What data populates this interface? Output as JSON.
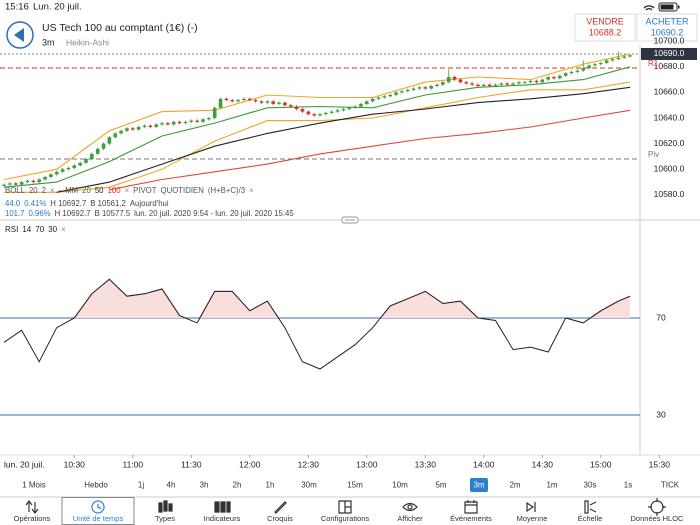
{
  "status_bar": {
    "time": "15:16",
    "date": "Lun. 20 juil."
  },
  "header": {
    "title": "US Tech 100 au comptant (1€) (-)",
    "timeframe": "3m",
    "chart_type": "Heikin-Ashi"
  },
  "quotes": {
    "sell": {
      "label": "VENDRE",
      "price": "10688.2"
    },
    "buy": {
      "label": "ACHETER",
      "price": "10690.2"
    }
  },
  "indicator_legend": {
    "row1": [
      {
        "text": "BOLL",
        "color": "#555"
      },
      {
        "text": "20",
        "color": "#555"
      },
      {
        "text": "2",
        "color": "#555"
      },
      {
        "text": "×",
        "color": "#888"
      },
      {
        "text": "-",
        "color": "#555"
      },
      {
        "text": "MM",
        "color": "#555"
      },
      {
        "text": "20",
        "color": "#2e8b2e"
      },
      {
        "text": "50",
        "color": "#222"
      },
      {
        "text": "100",
        "color": "#d9342b"
      },
      {
        "text": "×",
        "color": "#888"
      },
      {
        "text": "PIVOT",
        "color": "#555"
      },
      {
        "text": "QUOTIDIEN",
        "color": "#555"
      },
      {
        "text": "(H+B+C)/3",
        "color": "#555"
      },
      {
        "text": "×",
        "color": "#888"
      }
    ],
    "row2": [
      {
        "text": "44.0",
        "color": "#2a78c8"
      },
      {
        "text": "0.41%",
        "color": "#2a78c8"
      },
      {
        "text": "H 10692.7",
        "color": "#444"
      },
      {
        "text": "B 10561.2",
        "color": "#444"
      },
      {
        "text": "Aujourd'hui",
        "color": "#444"
      }
    ],
    "row3": [
      {
        "text": "101.7",
        "color": "#2a78c8"
      },
      {
        "text": "0.96%",
        "color": "#2a78c8"
      },
      {
        "text": "H 10692.7",
        "color": "#444"
      },
      {
        "text": "B 10577.5",
        "color": "#444"
      },
      {
        "text": "lun. 20 juil. 2020 9:54 - lun. 20 juil. 2020 15:45",
        "color": "#444"
      }
    ]
  },
  "chart_data": [
    {
      "type": "candlestick",
      "x": [
        0,
        1,
        2,
        3,
        4,
        5,
        6,
        7,
        8,
        9,
        10,
        11,
        12,
        13,
        14,
        15,
        16,
        17,
        18,
        19,
        20,
        21,
        22,
        23,
        24,
        25,
        26,
        27,
        28,
        29,
        30,
        31,
        32,
        33,
        34,
        35,
        36,
        37,
        38,
        39,
        40,
        41,
        42,
        43,
        44,
        45,
        46,
        47,
        48,
        49,
        50,
        51,
        52,
        53,
        54,
        55,
        56,
        57,
        58,
        59,
        60,
        61,
        62,
        63,
        64,
        65,
        66,
        67,
        68,
        69,
        70,
        71,
        72,
        73,
        74,
        75,
        76,
        77,
        78,
        79,
        80,
        81,
        82,
        83,
        84,
        85,
        86,
        87,
        88,
        89,
        90,
        91,
        92,
        93,
        94,
        95,
        96,
        97,
        98,
        99,
        100,
        101,
        102,
        103,
        104,
        105,
        106,
        107
      ],
      "open": [
        10587,
        10588,
        10589,
        10588,
        10590,
        10591,
        10590,
        10592,
        10594,
        10596,
        10598,
        10600,
        10601,
        10603,
        10605,
        10608,
        10612,
        10616,
        10620,
        10625,
        10628,
        10630,
        10632,
        10631,
        10633,
        10634,
        10633,
        10635,
        10636,
        10635,
        10637,
        10636,
        10637,
        10638,
        10637,
        10639,
        10640,
        10648,
        10655,
        10654,
        10653,
        10654,
        10655,
        10654,
        10653,
        10652,
        10653,
        10651,
        10652,
        10650,
        10649,
        10647,
        10645,
        10643,
        10642,
        10643,
        10644,
        10645,
        10646,
        10647,
        10648,
        10649,
        10651,
        10653,
        10655,
        10656,
        10657,
        10658,
        10660,
        10661,
        10662,
        10663,
        10664,
        10663,
        10665,
        10666,
        10668,
        10672,
        10670,
        10668,
        10667,
        10666,
        10665,
        10666,
        10665,
        10666,
        10667,
        10666,
        10667,
        10668,
        10668,
        10669,
        10668,
        10670,
        10672,
        10671,
        10673,
        10675,
        10676,
        10677,
        10679,
        10681,
        10682,
        10683,
        10685,
        10686,
        10687,
        10688
      ],
      "high": [
        10589,
        10590,
        10590,
        10591,
        10592,
        10592,
        10593,
        10595,
        10597,
        10599,
        10601,
        10602,
        10604,
        10606,
        10609,
        10613,
        10617,
        10621,
        10626,
        10629,
        10631,
        10633,
        10633,
        10634,
        10635,
        10635,
        10636,
        10637,
        10637,
        10638,
        10638,
        10638,
        10639,
        10639,
        10640,
        10641,
        10649,
        10656,
        10656,
        10655,
        10655,
        10656,
        10656,
        10655,
        10654,
        10654,
        10654,
        10653,
        10653,
        10651,
        10650,
        10648,
        10646,
        10644,
        10644,
        10645,
        10646,
        10647,
        10648,
        10649,
        10650,
        10652,
        10654,
        10656,
        10657,
        10658,
        10659,
        10661,
        10662,
        10663,
        10664,
        10665,
        10665,
        10666,
        10667,
        10669,
        10678,
        10673,
        10671,
        10669,
        10668,
        10667,
        10667,
        10667,
        10667,
        10668,
        10668,
        10668,
        10669,
        10669,
        10670,
        10670,
        10671,
        10673,
        10673,
        10674,
        10676,
        10677,
        10678,
        10685,
        10682,
        10683,
        10684,
        10686,
        10687,
        10692,
        10689,
        10690
      ],
      "low": [
        10586,
        10587,
        10587,
        10587,
        10589,
        10589,
        10589,
        10591,
        10593,
        10595,
        10597,
        10599,
        10600,
        10602,
        10604,
        10607,
        10611,
        10615,
        10619,
        10624,
        10627,
        10629,
        10630,
        10630,
        10632,
        10632,
        10632,
        10634,
        10634,
        10634,
        10635,
        10635,
        10636,
        10636,
        10636,
        10638,
        10639,
        10647,
        10653,
        10652,
        10652,
        10653,
        10653,
        10652,
        10651,
        10651,
        10650,
        10650,
        10649,
        10648,
        10646,
        10644,
        10642,
        10641,
        10641,
        10642,
        10643,
        10644,
        10645,
        10646,
        10647,
        10648,
        10650,
        10652,
        10654,
        10655,
        10656,
        10657,
        10659,
        10660,
        10661,
        10662,
        10662,
        10662,
        10664,
        10665,
        10667,
        10669,
        10667,
        10666,
        10665,
        10664,
        10664,
        10664,
        10664,
        10665,
        10665,
        10665,
        10666,
        10667,
        10667,
        10667,
        10667,
        10669,
        10670,
        10670,
        10672,
        10674,
        10675,
        10676,
        10678,
        10680,
        10681,
        10682,
        10684,
        10685,
        10686,
        10687
      ],
      "close": [
        10588,
        10589,
        10588,
        10590,
        10591,
        10590,
        10592,
        10594,
        10596,
        10598,
        10600,
        10601,
        10603,
        10605,
        10608,
        10612,
        10616,
        10620,
        10625,
        10628,
        10630,
        10632,
        10631,
        10633,
        10634,
        10633,
        10635,
        10636,
        10635,
        10637,
        10636,
        10637,
        10638,
        10637,
        10639,
        10640,
        10648,
        10655,
        10654,
        10653,
        10654,
        10655,
        10654,
        10653,
        10652,
        10653,
        10651,
        10652,
        10650,
        10649,
        10647,
        10645,
        10643,
        10642,
        10643,
        10644,
        10645,
        10646,
        10647,
        10648,
        10649,
        10651,
        10653,
        10655,
        10656,
        10657,
        10658,
        10660,
        10661,
        10662,
        10663,
        10664,
        10663,
        10665,
        10666,
        10668,
        10672,
        10670,
        10668,
        10667,
        10666,
        10665,
        10666,
        10665,
        10666,
        10667,
        10666,
        10667,
        10668,
        10668,
        10669,
        10668,
        10670,
        10672,
        10671,
        10673,
        10675,
        10676,
        10677,
        10679,
        10681,
        10682,
        10683,
        10685,
        10686,
        10687,
        10688,
        10689
      ],
      "up_color": "#3f9f3a",
      "down_color": "#d5322b",
      "overlays": [
        {
          "color": "#f0a52a",
          "x": [
            0,
            9,
            18,
            27,
            36,
            45,
            54,
            63,
            72,
            81,
            90,
            99,
            107
          ],
          "values": [
            10592,
            10600,
            10630,
            10645,
            10646,
            10658,
            10656,
            10656,
            10668,
            10672,
            10670,
            10682,
            10690
          ]
        },
        {
          "color": "#3b9a35",
          "x": [
            0,
            9,
            18,
            27,
            36,
            45,
            54,
            63,
            72,
            81,
            90,
            99,
            107
          ],
          "values": [
            10586,
            10590,
            10606,
            10626,
            10636,
            10648,
            10649,
            10648,
            10658,
            10664,
            10666,
            10670,
            10680
          ]
        },
        {
          "color": "#f0a52a",
          "x": [
            0,
            9,
            18,
            27,
            36,
            45,
            54,
            63,
            72,
            81,
            90,
            99,
            107
          ],
          "values": [
            10582,
            10582,
            10586,
            10600,
            10622,
            10638,
            10638,
            10640,
            10648,
            10656,
            10662,
            10662,
            10668
          ]
        },
        {
          "color": "#222222",
          "x": [
            9,
            18,
            27,
            36,
            45,
            54,
            63,
            72,
            81,
            90,
            99,
            107
          ],
          "values": [
            10582,
            10590,
            10604,
            10618,
            10628,
            10636,
            10643,
            10647,
            10652,
            10655,
            10659,
            10664
          ]
        },
        {
          "color": "#e0463c",
          "x": [
            18,
            27,
            36,
            45,
            54,
            63,
            72,
            81,
            90,
            99,
            107
          ],
          "values": [
            10584,
            10592,
            10598,
            10604,
            10612,
            10618,
            10624,
            10628,
            10633,
            10640,
            10646
          ]
        }
      ],
      "reference_lines": [
        {
          "label": "R1",
          "value": 10679,
          "color": "#d5322b"
        },
        {
          "label": "Piv",
          "value": 10608,
          "color": "#777"
        }
      ],
      "last_price": {
        "value": 10690,
        "label": "10690.0"
      },
      "xlim": [
        -0.7,
        108.7
      ],
      "xticks": [
        {
          "value": 12,
          "label": "10:30"
        },
        {
          "value": 22,
          "label": "11:00"
        },
        {
          "value": 32,
          "label": "11:30"
        },
        {
          "value": 42,
          "label": "12:00"
        },
        {
          "value": 52,
          "label": "12:30"
        },
        {
          "value": 62,
          "label": "13:00"
        },
        {
          "value": 72,
          "label": "13:30"
        },
        {
          "value": 82,
          "label": "14:00"
        },
        {
          "value": 92,
          "label": "14:30"
        },
        {
          "value": 102,
          "label": "15:00"
        },
        {
          "value": 112,
          "label": "15:30"
        }
      ],
      "x_date_label": "lun. 20 juil.",
      "ylim": [
        10576,
        10697
      ],
      "yticks": [
        {
          "value": 10580,
          "label": "10580.0"
        },
        {
          "value": 10600,
          "label": "10600.0"
        },
        {
          "value": 10620,
          "label": "10620.0"
        },
        {
          "value": 10640,
          "label": "10640.0"
        },
        {
          "value": 10660,
          "label": "10660.0"
        },
        {
          "value": 10680,
          "label": "10680.0"
        },
        {
          "value": 10700,
          "label": "10700.0"
        }
      ]
    },
    {
      "type": "line",
      "title": "RSI",
      "params": [
        "14",
        "70",
        "30"
      ],
      "close_label": "×",
      "x": [
        0,
        3,
        6,
        9,
        12,
        15,
        18,
        21,
        24,
        27,
        30,
        33,
        36,
        39,
        42,
        45,
        48,
        51,
        54,
        57,
        60,
        63,
        66,
        69,
        72,
        75,
        78,
        81,
        84,
        87,
        90,
        93,
        96,
        99,
        102,
        105,
        107
      ],
      "values": [
        60,
        65,
        52,
        66,
        70,
        80,
        86,
        79,
        80,
        82,
        71,
        68,
        81,
        81,
        73,
        77,
        66,
        52,
        49,
        54,
        59,
        66,
        75,
        78,
        81,
        76,
        77,
        70,
        69,
        57,
        58,
        56,
        70,
        68,
        73,
        77,
        79
      ],
      "color": "#222",
      "overbought": 70,
      "overbought_fill": "#f9dede",
      "overbought_line": "#d9534f",
      "level_color": "#3f6fa8",
      "ylim": [
        13.5,
        102.2
      ],
      "yticks": [
        70,
        30
      ]
    }
  ],
  "timeframes": {
    "items": [
      "1 Mois",
      "Hebdo",
      "1j",
      "4h",
      "3h",
      "2h",
      "1h",
      "30m",
      "15m",
      "10m",
      "5m",
      "3m",
      "2m",
      "1m",
      "30s",
      "1s",
      "TICK"
    ],
    "selected_index": 11
  },
  "toolbar": {
    "items": [
      "Opérations",
      "Unité de temps",
      "Types",
      "Indicateurs",
      "Croquis",
      "Configurations",
      "Afficher",
      "Événements",
      "Moyenne",
      "Échelle",
      "Données HLOC"
    ],
    "selected_index": 1
  }
}
